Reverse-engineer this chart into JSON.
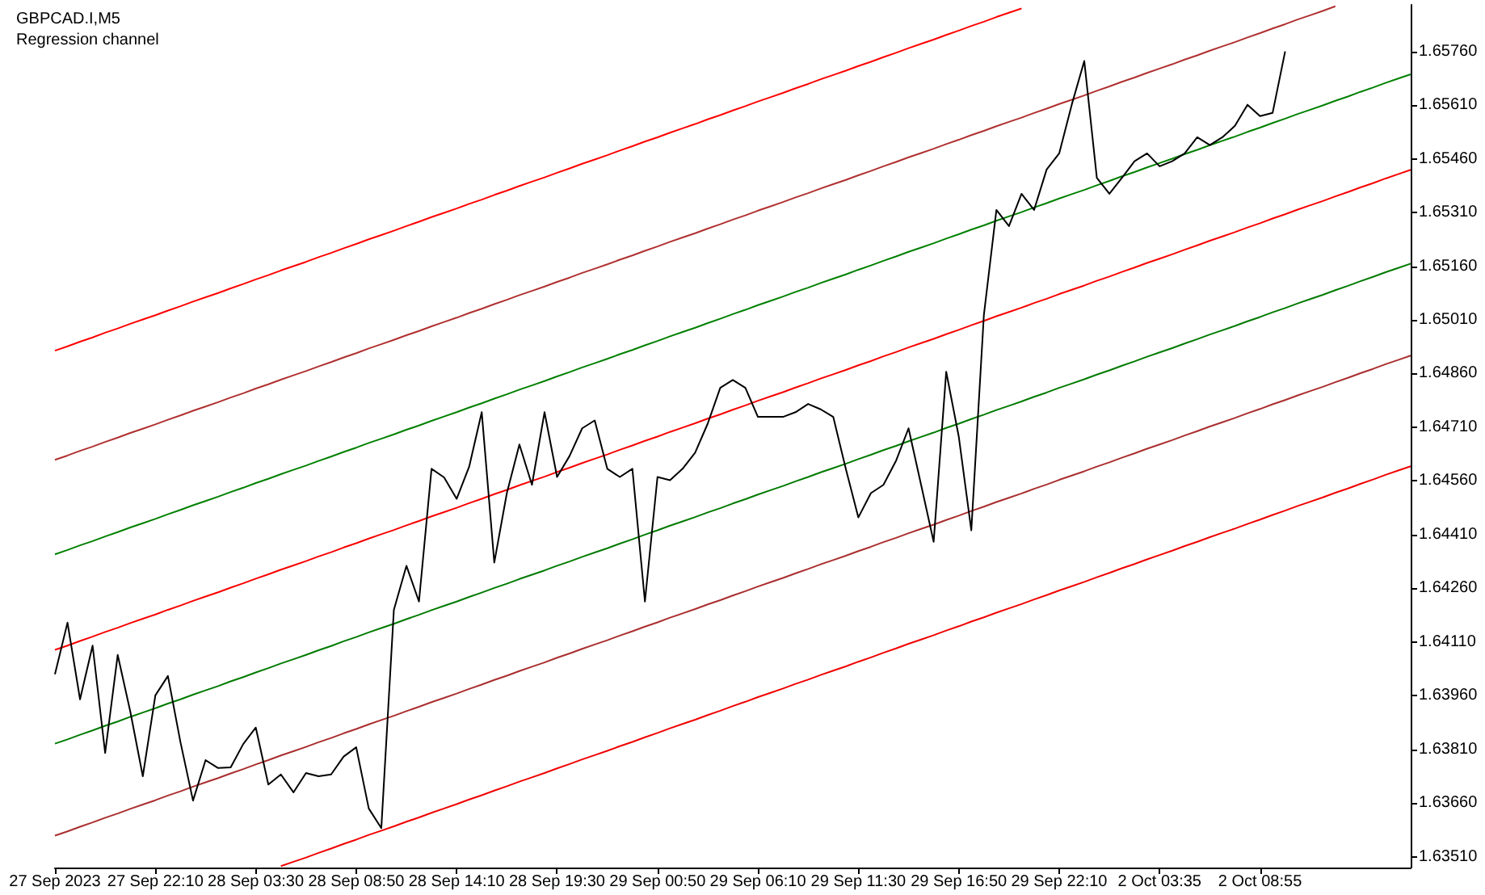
{
  "chart_data": {
    "type": "line",
    "title": "GBPCAD.I,M5",
    "subtitle": "Regression channel",
    "categories": [
      "27 Sep 2023",
      null,
      null,
      null,
      null,
      null,
      null,
      null,
      "27 Sep 22:10",
      null,
      null,
      null,
      null,
      null,
      null,
      null,
      "28 Sep 03:30",
      null,
      null,
      null,
      null,
      null,
      null,
      null,
      "28 Sep 08:50",
      null,
      null,
      null,
      null,
      null,
      null,
      null,
      "28 Sep 14:10",
      null,
      null,
      null,
      null,
      null,
      null,
      null,
      "28 Sep 19:30",
      null,
      null,
      null,
      null,
      null,
      null,
      null,
      "29 Sep 00:50",
      null,
      null,
      null,
      null,
      null,
      null,
      null,
      "29 Sep 06:10",
      null,
      null,
      null,
      null,
      null,
      null,
      null,
      "29 Sep 11:30",
      null,
      null,
      null,
      null,
      null,
      null,
      null,
      "29 Sep 16:50",
      null,
      null,
      null,
      null,
      null,
      null,
      null,
      "29 Sep 22:10",
      null,
      null,
      null,
      null,
      null,
      null,
      null,
      "2 Oct 03:35",
      null,
      null,
      null,
      null,
      null,
      null,
      null,
      "2 Oct 08:55",
      null,
      null,
      null,
      null,
      null,
      null,
      null,
      null,
      null,
      null,
      null,
      null
    ],
    "ylim": [
      1.6348,
      1.6589
    ],
    "yticks": [
      {
        "value": 1.6351,
        "label": "1.63510"
      },
      {
        "value": 1.6366,
        "label": "1.63660"
      },
      {
        "value": 1.6381,
        "label": "1.63810"
      },
      {
        "value": 1.6396,
        "label": "1.63960"
      },
      {
        "value": 1.6411,
        "label": "1.64110"
      },
      {
        "value": 1.6426,
        "label": "1.64260"
      },
      {
        "value": 1.6441,
        "label": "1.64410"
      },
      {
        "value": 1.6456,
        "label": "1.64560"
      },
      {
        "value": 1.6471,
        "label": "1.64710"
      },
      {
        "value": 1.6486,
        "label": "1.64860"
      },
      {
        "value": 1.6501,
        "label": "1.65010"
      },
      {
        "value": 1.6516,
        "label": "1.65160"
      },
      {
        "value": 1.6531,
        "label": "1.65310"
      },
      {
        "value": 1.6546,
        "label": "1.65460"
      },
      {
        "value": 1.6561,
        "label": "1.65610"
      },
      {
        "value": 1.6576,
        "label": "1.65760"
      }
    ],
    "grid": false,
    "marker": "none",
    "line_style": "solid",
    "series": [
      {
        "color": "#ff0000",
        "values": [
          1.64924,
          1.64936,
          1.64949,
          1.64961,
          1.64974,
          1.64986,
          1.64999,
          1.65011,
          1.65023,
          1.65036,
          1.65048,
          1.65061,
          1.65073,
          1.65085,
          1.65098,
          1.6511,
          1.65123,
          1.65135,
          1.65148,
          1.6516,
          1.65172,
          1.65185,
          1.65197,
          1.6521,
          1.65222,
          1.65235,
          1.65247,
          1.65259,
          1.65272,
          1.65284,
          1.65297,
          1.65309,
          1.65321,
          1.65334,
          1.65346,
          1.65359,
          1.65371,
          1.65384,
          1.65396,
          1.65408,
          1.65421,
          1.65433,
          1.65446,
          1.65458,
          1.6547,
          1.65483,
          1.65495,
          1.65508,
          1.6552,
          1.65533,
          1.65545,
          1.65557,
          1.6557,
          1.65582,
          1.65595,
          1.65607,
          1.6562,
          1.65632,
          1.65644,
          1.65657,
          1.65669,
          1.65682,
          1.65694,
          1.65706,
          1.65719,
          1.65731,
          1.65744,
          1.65756,
          1.65769,
          1.65781,
          1.65793,
          1.65806,
          1.65818,
          1.65831,
          1.65843,
          1.65856,
          1.65868,
          1.6588,
          null,
          null,
          null,
          null,
          null,
          null,
          null,
          null,
          null,
          null,
          null,
          null,
          null,
          null,
          null,
          null,
          null,
          null,
          null,
          null,
          null,
          null,
          null,
          null,
          null,
          null,
          null,
          null,
          null,
          null,
          null
        ]
      },
      {
        "color": "#b03030",
        "values": [
          1.64619,
          1.64631,
          1.64644,
          1.64656,
          1.64669,
          1.64681,
          1.64694,
          1.64706,
          1.64718,
          1.64731,
          1.64743,
          1.64756,
          1.64768,
          1.6478,
          1.64793,
          1.64805,
          1.64818,
          1.6483,
          1.64843,
          1.64855,
          1.64867,
          1.6488,
          1.64892,
          1.64905,
          1.64917,
          1.6493,
          1.64942,
          1.64954,
          1.64967,
          1.64979,
          1.64992,
          1.65004,
          1.65016,
          1.65029,
          1.65041,
          1.65054,
          1.65066,
          1.65079,
          1.65091,
          1.65103,
          1.65116,
          1.65128,
          1.65141,
          1.65153,
          1.65165,
          1.65178,
          1.6519,
          1.65203,
          1.65215,
          1.65228,
          1.6524,
          1.65252,
          1.65265,
          1.65277,
          1.6529,
          1.65302,
          1.65315,
          1.65327,
          1.65339,
          1.65352,
          1.65364,
          1.65377,
          1.65389,
          1.65401,
          1.65414,
          1.65426,
          1.65439,
          1.65451,
          1.65464,
          1.65476,
          1.65488,
          1.65501,
          1.65513,
          1.65526,
          1.65538,
          1.65551,
          1.65563,
          1.65575,
          1.65588,
          1.656,
          1.65613,
          1.65625,
          1.65637,
          1.6565,
          1.65662,
          1.65675,
          1.65687,
          1.657,
          1.65712,
          1.65724,
          1.65737,
          1.65749,
          1.65762,
          1.65774,
          1.65786,
          1.65799,
          1.65811,
          1.65824,
          1.65836,
          1.65849,
          1.65861,
          1.65873,
          1.65886,
          null,
          null,
          null,
          null,
          null,
          null
        ]
      },
      {
        "color": "#008000",
        "values": [
          1.64355,
          1.64367,
          1.6438,
          1.64392,
          1.64405,
          1.64417,
          1.6443,
          1.64442,
          1.64454,
          1.64467,
          1.64479,
          1.64492,
          1.64504,
          1.64516,
          1.64529,
          1.64541,
          1.64554,
          1.64566,
          1.64579,
          1.64591,
          1.64603,
          1.64616,
          1.64628,
          1.64641,
          1.64653,
          1.64666,
          1.64678,
          1.6469,
          1.64703,
          1.64715,
          1.64728,
          1.6474,
          1.64752,
          1.64765,
          1.64777,
          1.6479,
          1.64802,
          1.64815,
          1.64827,
          1.64839,
          1.64852,
          1.64864,
          1.64877,
          1.64889,
          1.64901,
          1.64914,
          1.64926,
          1.64939,
          1.64951,
          1.64964,
          1.64976,
          1.64988,
          1.65001,
          1.65013,
          1.65026,
          1.65038,
          1.65051,
          1.65063,
          1.65075,
          1.65088,
          1.651,
          1.65113,
          1.65125,
          1.65137,
          1.6515,
          1.65162,
          1.65175,
          1.65187,
          1.652,
          1.65212,
          1.65224,
          1.65237,
          1.65249,
          1.65262,
          1.65274,
          1.65287,
          1.65299,
          1.65311,
          1.65324,
          1.65336,
          1.65349,
          1.65361,
          1.65373,
          1.65386,
          1.65398,
          1.65411,
          1.65423,
          1.65436,
          1.65448,
          1.6546,
          1.65473,
          1.65485,
          1.65498,
          1.6551,
          1.65522,
          1.65535,
          1.65547,
          1.6556,
          1.65572,
          1.65585,
          1.65597,
          1.65609,
          1.65622,
          1.65634,
          1.65647,
          1.65659,
          1.65672,
          1.65684,
          1.65696
        ]
      },
      {
        "color": "#f80000",
        "values": [
          1.64088,
          1.641,
          1.64113,
          1.64125,
          1.64138,
          1.6415,
          1.64163,
          1.64175,
          1.64187,
          1.642,
          1.64212,
          1.64225,
          1.64237,
          1.64249,
          1.64262,
          1.64274,
          1.64287,
          1.64299,
          1.64312,
          1.64324,
          1.64336,
          1.64349,
          1.64361,
          1.64374,
          1.64386,
          1.64399,
          1.64411,
          1.64423,
          1.64436,
          1.64448,
          1.64461,
          1.64473,
          1.64485,
          1.64498,
          1.6451,
          1.64523,
          1.64535,
          1.64548,
          1.6456,
          1.64572,
          1.64585,
          1.64597,
          1.6461,
          1.64622,
          1.64634,
          1.64647,
          1.64659,
          1.64672,
          1.64684,
          1.64697,
          1.64709,
          1.64721,
          1.64734,
          1.64746,
          1.64759,
          1.64771,
          1.64784,
          1.64796,
          1.64808,
          1.64821,
          1.64833,
          1.64846,
          1.64858,
          1.6487,
          1.64883,
          1.64895,
          1.64908,
          1.6492,
          1.64933,
          1.64945,
          1.64957,
          1.6497,
          1.64982,
          1.64995,
          1.65007,
          1.6502,
          1.65032,
          1.65044,
          1.65057,
          1.65069,
          1.65082,
          1.65094,
          1.65106,
          1.65119,
          1.65131,
          1.65144,
          1.65156,
          1.65169,
          1.65181,
          1.65193,
          1.65206,
          1.65218,
          1.65231,
          1.65243,
          1.65255,
          1.65268,
          1.6528,
          1.65293,
          1.65305,
          1.65318,
          1.6533,
          1.65342,
          1.65355,
          1.65367,
          1.6538,
          1.65392,
          1.65405,
          1.65417,
          1.65429
        ]
      },
      {
        "color": "#007a00",
        "values": [
          1.63826,
          1.63838,
          1.63851,
          1.63863,
          1.63876,
          1.63888,
          1.63901,
          1.63913,
          1.63925,
          1.63938,
          1.6395,
          1.63963,
          1.63975,
          1.63987,
          1.64,
          1.64012,
          1.64025,
          1.64037,
          1.6405,
          1.64062,
          1.64074,
          1.64087,
          1.64099,
          1.64112,
          1.64124,
          1.64137,
          1.64149,
          1.64161,
          1.64174,
          1.64186,
          1.64199,
          1.64211,
          1.64223,
          1.64236,
          1.64248,
          1.64261,
          1.64273,
          1.64286,
          1.64298,
          1.6431,
          1.64323,
          1.64335,
          1.64348,
          1.6436,
          1.64372,
          1.64385,
          1.64397,
          1.6441,
          1.64422,
          1.64435,
          1.64447,
          1.64459,
          1.64472,
          1.64484,
          1.64497,
          1.64509,
          1.64522,
          1.64534,
          1.64546,
          1.64559,
          1.64571,
          1.64584,
          1.64596,
          1.64608,
          1.64621,
          1.64633,
          1.64646,
          1.64658,
          1.64671,
          1.64683,
          1.64695,
          1.64708,
          1.6472,
          1.64733,
          1.64745,
          1.64758,
          1.6477,
          1.64782,
          1.64795,
          1.64807,
          1.6482,
          1.64832,
          1.64844,
          1.64857,
          1.64869,
          1.64882,
          1.64894,
          1.64907,
          1.64919,
          1.64931,
          1.64944,
          1.64956,
          1.64969,
          1.64981,
          1.64993,
          1.65006,
          1.65018,
          1.65031,
          1.65043,
          1.65056,
          1.65068,
          1.6508,
          1.65093,
          1.65105,
          1.65118,
          1.6513,
          1.65143,
          1.65155,
          1.65167
        ]
      },
      {
        "color": "#aa2e2e",
        "values": [
          1.63569,
          1.63581,
          1.63594,
          1.63606,
          1.63619,
          1.63631,
          1.63644,
          1.63656,
          1.63668,
          1.63681,
          1.63693,
          1.63706,
          1.63718,
          1.6373,
          1.63743,
          1.63755,
          1.63768,
          1.6378,
          1.63793,
          1.63805,
          1.63817,
          1.6383,
          1.63842,
          1.63855,
          1.63867,
          1.6388,
          1.63892,
          1.63904,
          1.63917,
          1.63929,
          1.63942,
          1.63954,
          1.63966,
          1.63979,
          1.63991,
          1.64004,
          1.64016,
          1.64029,
          1.64041,
          1.64053,
          1.64066,
          1.64078,
          1.64091,
          1.64103,
          1.64115,
          1.64128,
          1.6414,
          1.64153,
          1.64165,
          1.64178,
          1.6419,
          1.64202,
          1.64215,
          1.64227,
          1.6424,
          1.64252,
          1.64265,
          1.64277,
          1.64289,
          1.64302,
          1.64314,
          1.64327,
          1.64339,
          1.64351,
          1.64364,
          1.64376,
          1.64389,
          1.64401,
          1.64414,
          1.64426,
          1.64438,
          1.64451,
          1.64463,
          1.64476,
          1.64488,
          1.64501,
          1.64513,
          1.64525,
          1.64538,
          1.6455,
          1.64563,
          1.64575,
          1.64587,
          1.646,
          1.64612,
          1.64625,
          1.64637,
          1.6465,
          1.64662,
          1.64674,
          1.64687,
          1.64699,
          1.64712,
          1.64724,
          1.64736,
          1.64749,
          1.64761,
          1.64774,
          1.64786,
          1.64799,
          1.64811,
          1.64823,
          1.64836,
          1.64848,
          1.64861,
          1.64873,
          1.64886,
          1.64898,
          1.6491
        ]
      },
      {
        "color": "#f00000",
        "values": [
          null,
          null,
          null,
          null,
          null,
          null,
          null,
          null,
          null,
          null,
          null,
          null,
          null,
          null,
          null,
          null,
          null,
          null,
          1.63484,
          1.63496,
          1.63508,
          1.63521,
          1.63533,
          1.63546,
          1.63558,
          1.63571,
          1.63583,
          1.63595,
          1.63608,
          1.6362,
          1.63633,
          1.63645,
          1.63657,
          1.6367,
          1.63682,
          1.63695,
          1.63707,
          1.6372,
          1.63732,
          1.63744,
          1.63757,
          1.63769,
          1.63782,
          1.63794,
          1.63806,
          1.63819,
          1.63831,
          1.63844,
          1.63856,
          1.63869,
          1.63881,
          1.63893,
          1.63906,
          1.63918,
          1.63931,
          1.63943,
          1.63956,
          1.63968,
          1.6398,
          1.63993,
          1.64005,
          1.64018,
          1.6403,
          1.64042,
          1.64055,
          1.64067,
          1.6408,
          1.64092,
          1.64105,
          1.64117,
          1.64129,
          1.64142,
          1.64154,
          1.64167,
          1.64179,
          1.64192,
          1.64204,
          1.64216,
          1.64229,
          1.64241,
          1.64254,
          1.64266,
          1.64278,
          1.64291,
          1.64303,
          1.64316,
          1.64328,
          1.64341,
          1.64353,
          1.64365,
          1.64378,
          1.6439,
          1.64403,
          1.64415,
          1.64427,
          1.6444,
          1.64452,
          1.64465,
          1.64477,
          1.6449,
          1.64502,
          1.64514,
          1.64527,
          1.64539,
          1.64552,
          1.64564,
          1.64577,
          1.64589,
          1.64601
        ]
      },
      {
        "color": "#000000",
        "values": [
          1.6402,
          1.64164,
          1.6395,
          1.641,
          1.638,
          1.64074,
          1.63916,
          1.63735,
          1.63961,
          1.64015,
          1.6383,
          1.63667,
          1.6378,
          1.63758,
          1.6376,
          1.63825,
          1.63871,
          1.63712,
          1.6374,
          1.6369,
          1.63744,
          1.63735,
          1.6374,
          1.6379,
          1.63816,
          1.63645,
          1.6359,
          1.642,
          1.64323,
          1.64223,
          1.64594,
          1.6457,
          1.6451,
          1.646,
          1.64752,
          1.64332,
          1.64526,
          1.64662,
          1.64549,
          1.64752,
          1.64571,
          1.6463,
          1.64707,
          1.64729,
          1.64594,
          1.64571,
          1.64594,
          1.64223,
          1.64571,
          1.64562,
          1.64594,
          1.64639,
          1.6472,
          1.6482,
          1.64842,
          1.6482,
          1.64739,
          1.64739,
          1.64739,
          1.64752,
          1.64775,
          1.6476,
          1.64739,
          1.64594,
          1.64458,
          1.64526,
          1.64549,
          1.64616,
          1.64707,
          1.64549,
          1.6439,
          1.64865,
          1.64684,
          1.64422,
          1.65023,
          1.65317,
          1.65272,
          1.65362,
          1.65317,
          1.6543,
          1.65475,
          1.65611,
          1.65733,
          1.65407,
          1.65362,
          1.65407,
          1.65453,
          1.65475,
          1.65439,
          1.65453,
          1.65475,
          1.6552,
          1.65498,
          1.6552,
          1.65552,
          1.65611,
          1.65579,
          1.65588,
          1.6576,
          null,
          null,
          null,
          null,
          null,
          null,
          null,
          null,
          null,
          null
        ]
      }
    ]
  }
}
